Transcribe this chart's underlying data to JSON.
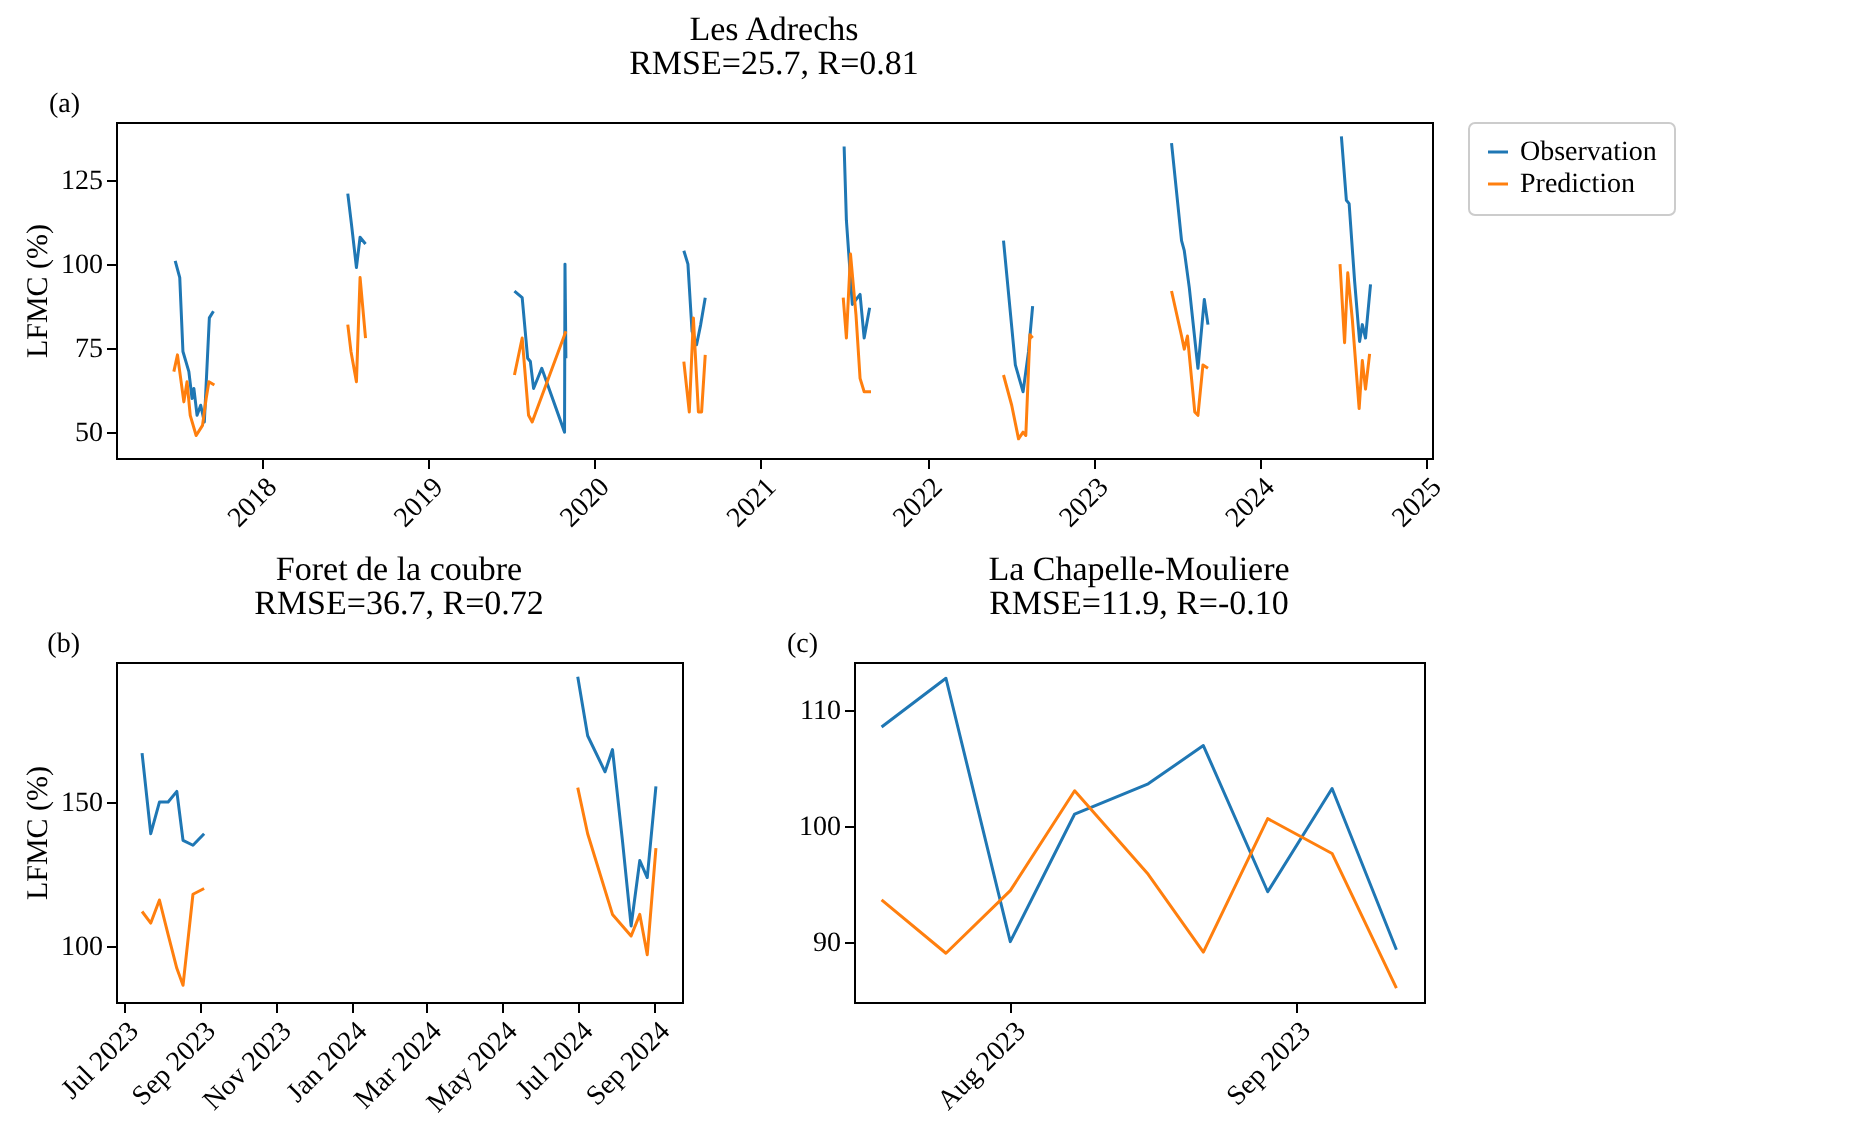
{
  "chart_data": [
    {
      "type": "line",
      "title": "Les Adrechs",
      "subtitle": "RMSE=25.7, R=0.81",
      "ylabel": "LFMC (%)",
      "annotations": [
        "(a)"
      ],
      "legend": "right",
      "xlim": [
        "2017-02-15",
        "2025-01-14"
      ],
      "xticks": [
        "2018",
        "2019",
        "2020",
        "2021",
        "2022",
        "2023",
        "2024",
        "2025"
      ],
      "ylim": [
        42.3,
        142.3
      ],
      "yticks": [
        50,
        75,
        100,
        125
      ],
      "series": [
        {
          "name": "Observation",
          "color": "#1f77b4",
          "x": [
            "2017-06-25",
            "2017-07-05",
            "2017-07-12",
            "2017-07-25",
            "2017-08-01",
            "2017-08-05",
            "2017-08-12",
            "2017-08-20",
            "2017-08-28",
            "2017-09-08",
            "2017-09-17",
            "2018-01-01",
            "2018-07-09",
            "2018-07-17",
            "2018-07-28",
            "2018-08-05",
            "2018-08-17",
            "2019-01-01",
            "2019-07-10",
            "2019-07-27",
            "2019-08-08",
            "2019-08-14",
            "2019-08-21",
            "2019-09-08",
            "2019-10-28",
            "2019-10-29",
            "2019-10-31",
            "2020-01-01",
            "2020-07-16",
            "2020-07-25",
            "2020-08-03",
            "2020-08-13",
            "2020-08-22",
            "2020-09-01",
            "2021-01-01",
            "2021-07-03",
            "2021-07-08",
            "2021-07-21",
            "2021-08-07",
            "2021-08-16",
            "2021-08-28",
            "2022-01-01",
            "2022-06-18",
            "2022-07-14",
            "2022-07-31",
            "2022-08-12",
            "2022-08-21",
            "2023-01-01",
            "2023-06-22",
            "2023-07-14",
            "2023-07-20",
            "2023-07-31",
            "2023-08-19",
            "2023-09-02",
            "2023-09-10",
            "2024-01-01",
            "2024-06-29",
            "2024-07-10",
            "2024-07-16",
            "2024-07-28",
            "2024-08-08",
            "2024-08-14",
            "2024-08-21",
            "2024-09-01"
          ],
          "values": [
            101,
            96,
            74,
            68,
            60,
            63,
            55,
            58,
            53,
            84,
            86,
            null,
            121,
            112,
            99,
            108,
            106,
            null,
            92,
            90,
            72,
            71,
            63,
            69,
            50,
            100,
            72,
            null,
            104,
            100,
            80,
            76,
            82,
            90,
            null,
            135,
            113,
            88,
            91,
            78,
            87,
            null,
            107,
            70,
            62,
            74,
            87.5,
            null,
            136,
            107,
            104,
            93,
            69,
            89.5,
            82,
            null,
            138,
            119,
            118,
            95,
            77,
            82,
            78,
            94
          ]
        },
        {
          "name": "Prediction",
          "color": "#ff7f0e",
          "x": [
            "2017-06-22",
            "2017-06-30",
            "2017-07-14",
            "2017-07-21",
            "2017-07-28",
            "2017-08-10",
            "2017-08-24",
            "2017-09-01",
            "2017-09-07",
            "2017-09-19",
            "2018-01-01",
            "2018-07-09",
            "2018-07-16",
            "2018-07-28",
            "2018-08-05",
            "2018-08-17",
            "2019-01-01",
            "2019-07-10",
            "2019-07-27",
            "2019-08-10",
            "2019-08-18",
            "2019-10-31",
            "2020-01-01",
            "2020-07-16",
            "2020-07-28",
            "2020-08-06",
            "2020-08-17",
            "2020-08-24",
            "2020-09-01",
            "2021-01-01",
            "2021-07-01",
            "2021-07-08",
            "2021-07-17",
            "2021-07-29",
            "2021-08-07",
            "2021-08-16",
            "2021-08-31",
            "2022-01-01",
            "2022-06-18",
            "2022-07-06",
            "2022-07-21",
            "2022-07-31",
            "2022-08-06",
            "2022-08-15",
            "2022-08-21",
            "2023-01-01",
            "2023-06-22",
            "2023-07-14",
            "2023-07-20",
            "2023-07-27",
            "2023-08-12",
            "2023-08-19",
            "2023-08-30",
            "2023-09-10",
            "2024-01-01",
            "2024-06-26",
            "2024-07-06",
            "2024-07-13",
            "2024-07-23",
            "2024-08-07",
            "2024-08-14",
            "2024-08-21",
            "2024-08-30"
          ],
          "values": [
            68,
            73,
            59,
            65,
            55,
            49,
            52,
            60,
            65,
            64,
            null,
            82,
            74,
            65,
            96,
            78,
            null,
            67,
            78,
            55,
            53,
            80,
            null,
            71,
            56,
            84,
            56,
            56,
            73,
            null,
            90,
            78,
            103,
            85,
            66,
            62,
            62,
            null,
            67,
            58,
            48,
            50,
            49,
            79,
            78,
            null,
            92,
            78.6,
            74.7,
            78.6,
            56,
            55,
            70,
            69,
            null,
            100,
            76.6,
            97.4,
            83.6,
            57,
            71.3,
            62.8,
            73.3
          ]
        }
      ]
    },
    {
      "type": "line",
      "title": "Foret de la coubre",
      "subtitle": "RMSE=36.7, R=0.72",
      "ylabel": "LFMC (%)",
      "annotations": [
        "(b)"
      ],
      "xlim": [
        "2023-06-25",
        "2024-09-23"
      ],
      "xticks": [
        {
          "value": "2023-07-01",
          "label": "Jul 2023"
        },
        {
          "value": "2023-09-01",
          "label": "Sep 2023"
        },
        {
          "value": "2023-11-01",
          "label": "Nov 2023"
        },
        {
          "value": "2024-01-01",
          "label": "Jan 2024"
        },
        {
          "value": "2024-03-01",
          "label": "Mar 2024"
        },
        {
          "value": "2024-05-01",
          "label": "May 2024"
        },
        {
          "value": "2024-07-01",
          "label": "Jul 2024"
        },
        {
          "value": "2024-09-01",
          "label": "Sep 2024"
        }
      ],
      "ylim": [
        80.6,
        198.6
      ],
      "yticks": [
        100,
        150
      ],
      "series": [
        {
          "color": "#1f77b4",
          "x": [
            "2023-07-16",
            "2023-07-23",
            "2023-07-30",
            "2023-08-06",
            "2023-08-13",
            "2023-08-18",
            "2023-08-26",
            "2023-09-04",
            "2024-01-01",
            "2024-07-01",
            "2024-07-09",
            "2024-07-23",
            "2024-07-29",
            "2024-08-06",
            "2024-08-13",
            "2024-08-20",
            "2024-08-26",
            "2024-09-02"
          ],
          "values": [
            167,
            139,
            150,
            150,
            153.7,
            136.7,
            135,
            139,
            null,
            193.5,
            173,
            160.5,
            168.2,
            136.7,
            107,
            129.7,
            123.8,
            155.4
          ]
        },
        {
          "color": "#ff7f0e",
          "x": [
            "2023-07-16",
            "2023-07-23",
            "2023-07-30",
            "2023-08-06",
            "2023-08-13",
            "2023-08-18",
            "2023-08-26",
            "2023-09-04",
            "2024-01-01",
            "2024-07-01",
            "2024-07-09",
            "2024-07-29",
            "2024-08-13",
            "2024-08-20",
            "2024-08-26",
            "2024-09-02"
          ],
          "values": [
            112,
            108,
            116,
            104,
            92.3,
            86.4,
            118,
            120,
            null,
            155,
            139,
            111,
            103.5,
            111,
            97,
            134
          ]
        }
      ]
    },
    {
      "type": "line",
      "title": "La Chapelle-Mouliere",
      "subtitle": "RMSE=11.9, R=-0.10",
      "annotations": [
        "(c)"
      ],
      "xlim": [
        "2023-07-15",
        "2023-09-15"
      ],
      "xticks": [
        {
          "value": "2023-08-01",
          "label": "Aug 2023"
        },
        {
          "value": "2023-09-01",
          "label": "Sep 2023"
        }
      ],
      "ylim": [
        84.8,
        114.1
      ],
      "yticks": [
        90,
        100,
        110
      ],
      "series": [
        {
          "color": "#1f77b4",
          "x": [
            "2023-07-18",
            "2023-07-25",
            "2023-08-01",
            "2023-08-08",
            "2023-08-16",
            "2023-08-22",
            "2023-08-29",
            "2023-09-05",
            "2023-09-12"
          ],
          "values": [
            108.5,
            112.7,
            90,
            101,
            103.6,
            106.9,
            94.3,
            103.2,
            89.3
          ]
        },
        {
          "color": "#ff7f0e",
          "x": [
            "2023-07-18",
            "2023-07-25",
            "2023-08-01",
            "2023-08-08",
            "2023-08-16",
            "2023-08-22",
            "2023-08-29",
            "2023-09-05",
            "2023-09-12"
          ],
          "values": [
            93.6,
            89.0,
            94.4,
            103.0,
            95.8,
            89.1,
            100.6,
            97.6,
            86
          ]
        }
      ]
    }
  ]
}
